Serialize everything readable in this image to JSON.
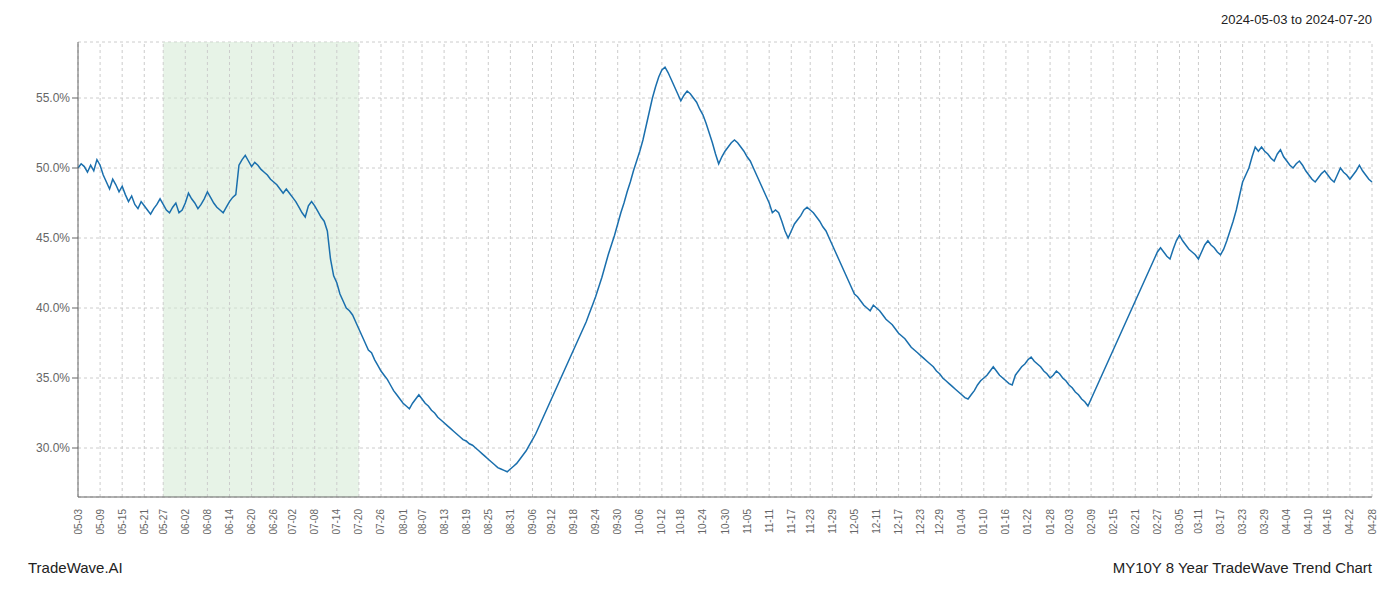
{
  "chart_data": {
    "type": "line",
    "title": "MY10Y 8 Year TradeWave Trend Chart",
    "subtitle": "2024-05-03 to 2024-07-20",
    "annotations": [
      "TradeWave.AI"
    ],
    "color": "#1a6fad",
    "grid": true,
    "highlight": {
      "from": "05-27",
      "to": "07-20",
      "color": "#d4ead4"
    },
    "ylim": [
      26.5,
      59.0
    ],
    "yticks": [
      {
        "value": 30.0,
        "label": "30.0%"
      },
      {
        "value": 35.0,
        "label": "35.0%"
      },
      {
        "value": 40.0,
        "label": "40.0%"
      },
      {
        "value": 45.0,
        "label": "45.0%"
      },
      {
        "value": 50.0,
        "label": "50.0%"
      },
      {
        "value": 55.0,
        "label": "55.0%"
      }
    ],
    "categories": [
      "05-03",
      null,
      null,
      null,
      null,
      null,
      null,
      "05-09",
      null,
      null,
      null,
      null,
      null,
      null,
      "05-15",
      null,
      null,
      null,
      null,
      null,
      null,
      "05-21",
      null,
      null,
      null,
      null,
      null,
      "05-27",
      null,
      null,
      null,
      null,
      null,
      null,
      "06-02",
      null,
      null,
      null,
      null,
      null,
      null,
      "06-08",
      null,
      null,
      null,
      null,
      null,
      null,
      "06-14",
      null,
      null,
      null,
      null,
      null,
      null,
      "06-20",
      null,
      null,
      null,
      null,
      null,
      null,
      "06-26",
      null,
      null,
      null,
      null,
      null,
      "07-02",
      null,
      null,
      null,
      null,
      null,
      null,
      "07-08",
      null,
      null,
      null,
      null,
      null,
      null,
      "07-14",
      null,
      null,
      null,
      null,
      null,
      null,
      "07-20",
      null,
      null,
      null,
      null,
      null,
      null,
      "07-26",
      null,
      null,
      null,
      null,
      null,
      null,
      "08-01",
      null,
      null,
      null,
      null,
      null,
      "08-07",
      null,
      null,
      null,
      null,
      null,
      null,
      "08-13",
      null,
      null,
      null,
      null,
      null,
      null,
      "08-19",
      null,
      null,
      null,
      null,
      null,
      null,
      "08-25",
      null,
      null,
      null,
      null,
      null,
      null,
      "08-31",
      null,
      null,
      null,
      null,
      null,
      null,
      "09-06",
      null,
      null,
      null,
      null,
      null,
      "09-12",
      null,
      null,
      null,
      null,
      null,
      null,
      "09-18",
      null,
      null,
      null,
      null,
      null,
      null,
      "09-24",
      null,
      null,
      null,
      null,
      null,
      null,
      "09-30",
      null,
      null,
      null,
      null,
      null,
      null,
      "10-06",
      null,
      null,
      null,
      null,
      null,
      null,
      "10-12",
      null,
      null,
      null,
      null,
      null,
      "10-18",
      null,
      null,
      null,
      null,
      null,
      null,
      "10-24",
      null,
      null,
      null,
      null,
      null,
      null,
      "10-30",
      null,
      null,
      null,
      null,
      null,
      null,
      "11-05",
      null,
      null,
      null,
      null,
      null,
      null,
      "11-11",
      null,
      null,
      null,
      null,
      null,
      null,
      "11-17",
      null,
      null,
      null,
      null,
      null,
      "11-23",
      null,
      null,
      null,
      null,
      null,
      null,
      "11-29",
      null,
      null,
      null,
      null,
      null,
      null,
      "12-05",
      null,
      null,
      null,
      null,
      null,
      null,
      "12-11",
      null,
      null,
      null,
      null,
      null,
      null,
      "12-17",
      null,
      null,
      null,
      null,
      null,
      null,
      "12-23",
      null,
      null,
      null,
      null,
      null,
      "12-29",
      null,
      null,
      null,
      null,
      null,
      null,
      "01-04",
      null,
      null,
      null,
      null,
      null,
      null,
      "01-10",
      null,
      null,
      null,
      null,
      null,
      null,
      "01-16",
      null,
      null,
      null,
      null,
      null,
      null,
      "01-22",
      null,
      null,
      null,
      null,
      null,
      null,
      "01-28",
      null,
      null,
      null,
      null,
      null,
      "02-03",
      null,
      null,
      null,
      null,
      null,
      null,
      "02-09",
      null,
      null,
      null,
      null,
      null,
      null,
      "02-15",
      null,
      null,
      null,
      null,
      null,
      null,
      "02-21",
      null,
      null,
      null,
      null,
      null,
      null,
      "02-27",
      null,
      null,
      null,
      null,
      null,
      null,
      "03-05",
      null,
      null,
      null,
      null,
      null,
      "03-11",
      null,
      null,
      null,
      null,
      null,
      null,
      "03-17",
      null,
      null,
      null,
      null,
      null,
      null,
      "03-23",
      null,
      null,
      null,
      null,
      null,
      null,
      "03-29",
      null,
      null,
      null,
      null,
      null,
      null,
      "04-04",
      null,
      null,
      null,
      null,
      null,
      null,
      "04-10",
      null,
      null,
      null,
      null,
      null,
      "04-16",
      null,
      null,
      null,
      null,
      null,
      null,
      "04-22",
      null,
      null,
      null,
      null,
      null,
      null,
      "04-28"
    ],
    "values": [
      50.0,
      50.3,
      50.1,
      49.7,
      50.2,
      49.8,
      50.6,
      50.2,
      49.5,
      49.0,
      48.5,
      49.2,
      48.8,
      48.3,
      48.7,
      48.1,
      47.6,
      48.0,
      47.4,
      47.1,
      47.6,
      47.3,
      47.0,
      46.7,
      47.1,
      47.4,
      47.8,
      47.4,
      47.0,
      46.8,
      47.2,
      47.5,
      46.8,
      47.0,
      47.5,
      48.2,
      47.8,
      47.5,
      47.1,
      47.4,
      47.8,
      48.3,
      47.9,
      47.5,
      47.2,
      47.0,
      46.8,
      47.2,
      47.6,
      47.9,
      48.1,
      50.2,
      50.6,
      50.9,
      50.5,
      50.1,
      50.4,
      50.2,
      49.9,
      49.7,
      49.5,
      49.2,
      49.0,
      48.8,
      48.5,
      48.2,
      48.5,
      48.2,
      47.9,
      47.6,
      47.2,
      46.8,
      46.5,
      47.3,
      47.6,
      47.3,
      46.9,
      46.5,
      46.2,
      45.5,
      43.5,
      42.3,
      41.8,
      41.0,
      40.5,
      40.0,
      39.8,
      39.5,
      39.0,
      38.5,
      38.0,
      37.5,
      37.0,
      36.8,
      36.3,
      35.9,
      35.5,
      35.2,
      34.9,
      34.5,
      34.1,
      33.8,
      33.5,
      33.2,
      33.0,
      32.8,
      33.2,
      33.5,
      33.8,
      33.5,
      33.2,
      33.0,
      32.7,
      32.5,
      32.2,
      32.0,
      31.8,
      31.6,
      31.4,
      31.2,
      31.0,
      30.8,
      30.6,
      30.5,
      30.3,
      30.2,
      30.0,
      29.8,
      29.6,
      29.4,
      29.2,
      29.0,
      28.8,
      28.6,
      28.5,
      28.4,
      28.3,
      28.5,
      28.7,
      28.9,
      29.2,
      29.5,
      29.8,
      30.2,
      30.6,
      31.0,
      31.5,
      32.0,
      32.5,
      33.0,
      33.5,
      34.0,
      34.5,
      35.0,
      35.5,
      36.0,
      36.5,
      37.0,
      37.5,
      38.0,
      38.5,
      39.0,
      39.6,
      40.2,
      40.8,
      41.5,
      42.2,
      43.0,
      43.8,
      44.5,
      45.2,
      46.0,
      46.8,
      47.5,
      48.3,
      49.0,
      49.8,
      50.5,
      51.2,
      52.0,
      53.0,
      54.0,
      55.0,
      55.8,
      56.5,
      57.0,
      57.2,
      56.8,
      56.3,
      55.8,
      55.3,
      54.8,
      55.2,
      55.5,
      55.3,
      55.0,
      54.7,
      54.2,
      53.8,
      53.2,
      52.5,
      51.8,
      51.0,
      50.3,
      50.8,
      51.2,
      51.5,
      51.8,
      52.0,
      51.8,
      51.5,
      51.2,
      50.8,
      50.5,
      50.0,
      49.5,
      49.0,
      48.5,
      48.0,
      47.5,
      46.8,
      47.0,
      46.8,
      46.2,
      45.5,
      45.0,
      45.5,
      46.0,
      46.3,
      46.6,
      47.0,
      47.2,
      47.0,
      46.8,
      46.5,
      46.2,
      45.8,
      45.5,
      45.0,
      44.5,
      44.0,
      43.5,
      43.0,
      42.5,
      42.0,
      41.5,
      41.0,
      40.8,
      40.5,
      40.2,
      40.0,
      39.8,
      40.2,
      40.0,
      39.8,
      39.5,
      39.2,
      39.0,
      38.8,
      38.5,
      38.2,
      38.0,
      37.8,
      37.5,
      37.2,
      37.0,
      36.8,
      36.6,
      36.4,
      36.2,
      36.0,
      35.8,
      35.5,
      35.3,
      35.0,
      34.8,
      34.6,
      34.4,
      34.2,
      34.0,
      33.8,
      33.6,
      33.5,
      33.8,
      34.1,
      34.5,
      34.8,
      35.0,
      35.2,
      35.5,
      35.8,
      35.5,
      35.2,
      35.0,
      34.8,
      34.6,
      34.5,
      35.2,
      35.5,
      35.8,
      36.0,
      36.3,
      36.5,
      36.2,
      36.0,
      35.8,
      35.5,
      35.3,
      35.0,
      35.2,
      35.5,
      35.3,
      35.0,
      34.8,
      34.5,
      34.3,
      34.0,
      33.8,
      33.5,
      33.3,
      33.0,
      33.5,
      34.0,
      34.5,
      35.0,
      35.5,
      36.0,
      36.5,
      37.0,
      37.5,
      38.0,
      38.5,
      39.0,
      39.5,
      40.0,
      40.5,
      41.0,
      41.5,
      42.0,
      42.5,
      43.0,
      43.5,
      44.0,
      44.3,
      44.0,
      43.7,
      43.5,
      44.2,
      44.8,
      45.2,
      44.8,
      44.5,
      44.2,
      44.0,
      43.8,
      43.5,
      44.0,
      44.5,
      44.8,
      44.5,
      44.3,
      44.0,
      43.8,
      44.2,
      44.8,
      45.5,
      46.2,
      47.0,
      48.0,
      49.0,
      49.5,
      50.0,
      50.8,
      51.5,
      51.2,
      51.5,
      51.2,
      51.0,
      50.7,
      50.5,
      51.0,
      51.3,
      50.8,
      50.5,
      50.2,
      50.0,
      50.3,
      50.5,
      50.2,
      49.8,
      49.5,
      49.2,
      49.0,
      49.3,
      49.6,
      49.8,
      49.5,
      49.2,
      49.0,
      49.5,
      50.0,
      49.7,
      49.5,
      49.2,
      49.5,
      49.8,
      50.2,
      49.8,
      49.5,
      49.2,
      49.0
    ]
  }
}
